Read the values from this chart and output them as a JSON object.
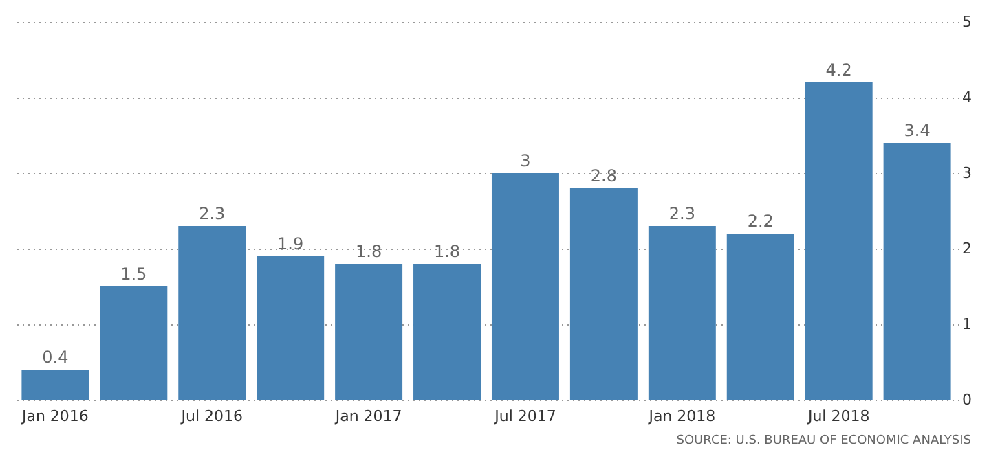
{
  "chart_data": {
    "type": "bar",
    "categories": [
      "Jan 2016",
      null,
      "Jul 2016",
      null,
      "Jan 2017",
      null,
      "Jul 2017",
      null,
      "Jan 2018",
      null,
      "Jul 2018",
      null
    ],
    "values": [
      0.4,
      1.5,
      2.3,
      1.9,
      1.8,
      1.8,
      3,
      2.8,
      2.3,
      2.2,
      4.2,
      3.4
    ],
    "color": "#4682b4",
    "ylim": [
      0,
      5
    ],
    "yticks": [
      0,
      1,
      2,
      3,
      4,
      5
    ],
    "grid": "y",
    "data_labels": true,
    "annotations": [
      "SOURCE: U.S. BUREAU OF ECONOMIC ANALYSIS"
    ]
  }
}
